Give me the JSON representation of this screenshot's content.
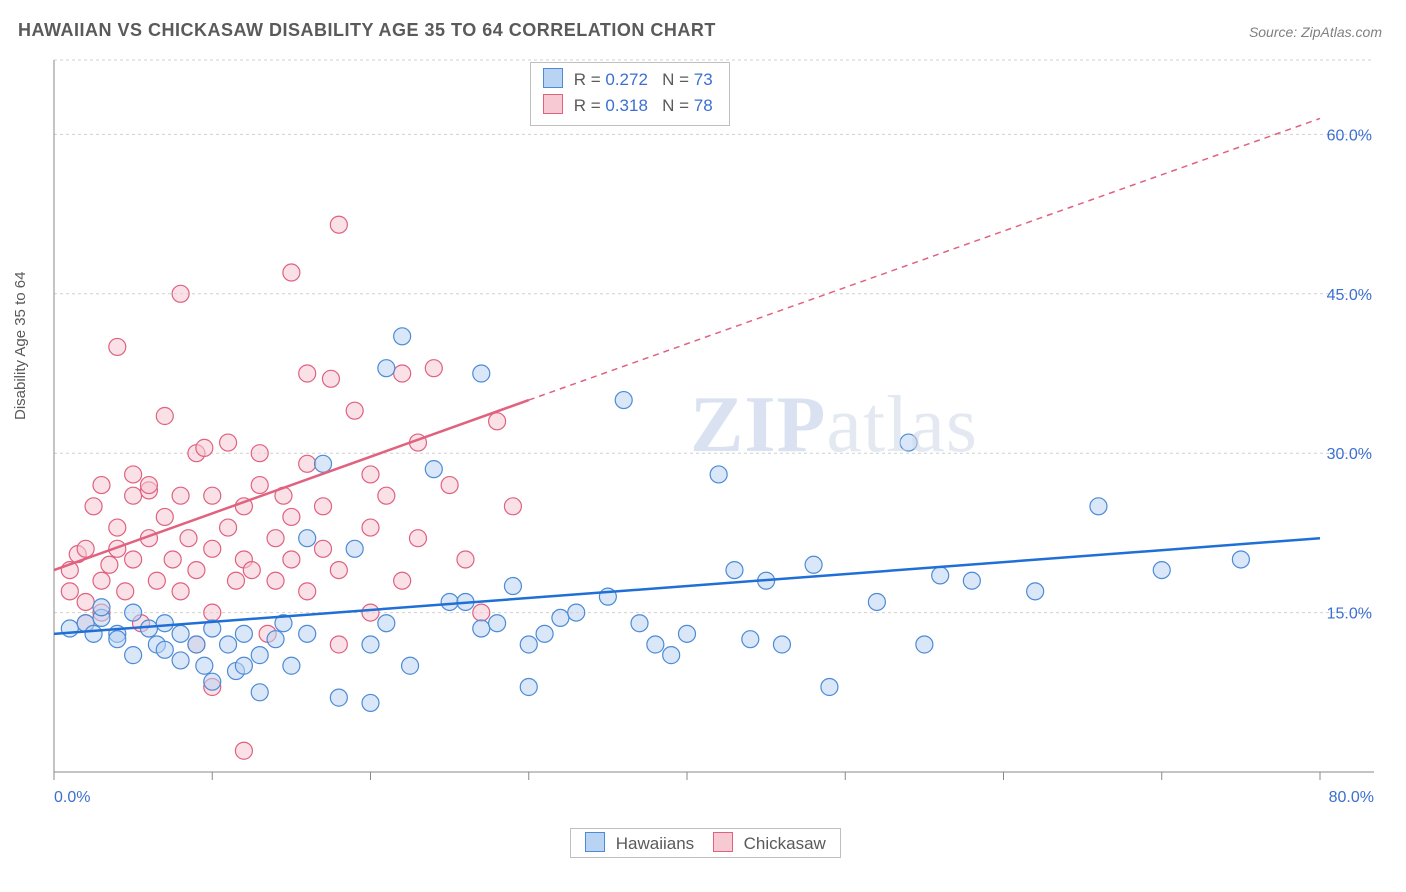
{
  "title": "HAWAIIAN VS CHICKASAW DISABILITY AGE 35 TO 64 CORRELATION CHART",
  "source": "Source: ZipAtlas.com",
  "ylabel": "Disability Age 35 to 64",
  "watermark_left": "ZIP",
  "watermark_right": "atlas",
  "chart": {
    "type": "scatter",
    "background_color": "#ffffff",
    "grid_color": "#d0d0d0",
    "axis_color": "#888888",
    "xlim": [
      0,
      80
    ],
    "ylim": [
      0,
      67
    ],
    "x_ticks": [
      0,
      10,
      20,
      30,
      40,
      50,
      60,
      70,
      80
    ],
    "x_tick_labels": {
      "0": "0.0%",
      "80": "80.0%"
    },
    "y_gridlines": [
      15,
      30,
      45,
      60,
      67
    ],
    "y_tick_labels": {
      "15": "15.0%",
      "30": "30.0%",
      "45": "45.0%",
      "60": "60.0%"
    },
    "marker_radius": 8.5,
    "marker_opacity": 0.55,
    "line_width_solid": 2.5,
    "line_width_dash": 1.5,
    "dash_pattern": "6 5",
    "series": {
      "hawaiians": {
        "label": "Hawaiians",
        "fill": "#b9d4f2",
        "stroke": "#4d8bd6",
        "line_color": "#1f6fd6",
        "r_value": "0.272",
        "n_value": "73",
        "trend_solid": {
          "x1": 0,
          "y1": 13.0,
          "x2": 80,
          "y2": 22.0
        },
        "points": [
          [
            1,
            13.5
          ],
          [
            2,
            14
          ],
          [
            2.5,
            13
          ],
          [
            3,
            14.5
          ],
          [
            3,
            15.5
          ],
          [
            4,
            13
          ],
          [
            4,
            12.5
          ],
          [
            5,
            15
          ],
          [
            5,
            11
          ],
          [
            6,
            13.5
          ],
          [
            6.5,
            12
          ],
          [
            7,
            14
          ],
          [
            7,
            11.5
          ],
          [
            8,
            13
          ],
          [
            8,
            10.5
          ],
          [
            9,
            12
          ],
          [
            9.5,
            10
          ],
          [
            10,
            13.5
          ],
          [
            10,
            8.5
          ],
          [
            11,
            12
          ],
          [
            11.5,
            9.5
          ],
          [
            12,
            10
          ],
          [
            12,
            13
          ],
          [
            13,
            11
          ],
          [
            13,
            7.5
          ],
          [
            14,
            12.5
          ],
          [
            14.5,
            14
          ],
          [
            15,
            10
          ],
          [
            16,
            22
          ],
          [
            16,
            13
          ],
          [
            17,
            29
          ],
          [
            18,
            7
          ],
          [
            19,
            21
          ],
          [
            20,
            12
          ],
          [
            20,
            6.5
          ],
          [
            21,
            38
          ],
          [
            21,
            14
          ],
          [
            22,
            41
          ],
          [
            22.5,
            10
          ],
          [
            24,
            28.5
          ],
          [
            25,
            16
          ],
          [
            26,
            16
          ],
          [
            27,
            13.5
          ],
          [
            27,
            37.5
          ],
          [
            28,
            14
          ],
          [
            29,
            17.5
          ],
          [
            30,
            12
          ],
          [
            30,
            8
          ],
          [
            31,
            13
          ],
          [
            32,
            14.5
          ],
          [
            33,
            15
          ],
          [
            35,
            16.5
          ],
          [
            36,
            35
          ],
          [
            37,
            14
          ],
          [
            38,
            12
          ],
          [
            39,
            11
          ],
          [
            40,
            13
          ],
          [
            42,
            28
          ],
          [
            43,
            19
          ],
          [
            44,
            12.5
          ],
          [
            45,
            18
          ],
          [
            46,
            12
          ],
          [
            48,
            19.5
          ],
          [
            49,
            8
          ],
          [
            52,
            16
          ],
          [
            54,
            31
          ],
          [
            55,
            12
          ],
          [
            56,
            18.5
          ],
          [
            58,
            18
          ],
          [
            62,
            17
          ],
          [
            66,
            25
          ],
          [
            70,
            19
          ],
          [
            75,
            20
          ]
        ]
      },
      "chickasaw": {
        "label": "Chickasaw",
        "fill": "#f6c9d3",
        "stroke": "#e0627f",
        "line_color": "#e0627f",
        "r_value": "0.318",
        "n_value": "78",
        "trend_solid": {
          "x1": 0,
          "y1": 19.0,
          "x2": 30,
          "y2": 35.0
        },
        "trend_dash": {
          "x1": 30,
          "y1": 35.0,
          "x2": 80,
          "y2": 61.5
        },
        "points": [
          [
            1,
            17
          ],
          [
            1,
            19
          ],
          [
            1.5,
            20.5
          ],
          [
            2,
            16
          ],
          [
            2,
            21
          ],
          [
            2,
            14
          ],
          [
            2.5,
            25
          ],
          [
            3,
            18
          ],
          [
            3,
            27
          ],
          [
            3,
            15
          ],
          [
            3.5,
            19.5
          ],
          [
            4,
            21
          ],
          [
            4,
            23
          ],
          [
            4,
            40
          ],
          [
            4.5,
            17
          ],
          [
            5,
            26
          ],
          [
            5,
            20
          ],
          [
            5,
            28
          ],
          [
            5.5,
            14
          ],
          [
            6,
            22
          ],
          [
            6,
            26.5
          ],
          [
            6,
            27
          ],
          [
            6.5,
            18
          ],
          [
            7,
            24
          ],
          [
            7,
            33.5
          ],
          [
            7.5,
            20
          ],
          [
            8,
            26
          ],
          [
            8,
            45
          ],
          [
            8,
            17
          ],
          [
            8.5,
            22
          ],
          [
            9,
            30
          ],
          [
            9,
            19
          ],
          [
            9,
            12
          ],
          [
            9.5,
            30.5
          ],
          [
            10,
            21
          ],
          [
            10,
            26
          ],
          [
            10,
            15
          ],
          [
            10,
            8
          ],
          [
            11,
            23
          ],
          [
            11,
            31
          ],
          [
            11.5,
            18
          ],
          [
            12,
            20
          ],
          [
            12,
            2
          ],
          [
            12,
            25
          ],
          [
            12.5,
            19
          ],
          [
            13,
            27
          ],
          [
            13,
            30
          ],
          [
            13.5,
            13
          ],
          [
            14,
            22
          ],
          [
            14,
            18
          ],
          [
            14.5,
            26
          ],
          [
            15,
            20
          ],
          [
            15,
            47
          ],
          [
            15,
            24
          ],
          [
            16,
            17
          ],
          [
            16,
            29
          ],
          [
            16,
            37.5
          ],
          [
            17,
            21
          ],
          [
            17,
            25
          ],
          [
            17.5,
            37
          ],
          [
            18,
            19
          ],
          [
            18,
            51.5
          ],
          [
            18,
            12
          ],
          [
            19,
            34
          ],
          [
            20,
            23
          ],
          [
            20,
            28
          ],
          [
            20,
            15
          ],
          [
            21,
            26
          ],
          [
            22,
            37.5
          ],
          [
            22,
            18
          ],
          [
            23,
            31
          ],
          [
            23,
            22
          ],
          [
            24,
            38
          ],
          [
            25,
            27
          ],
          [
            26,
            20
          ],
          [
            27,
            15
          ],
          [
            28,
            33
          ],
          [
            29,
            25
          ]
        ]
      }
    }
  }
}
